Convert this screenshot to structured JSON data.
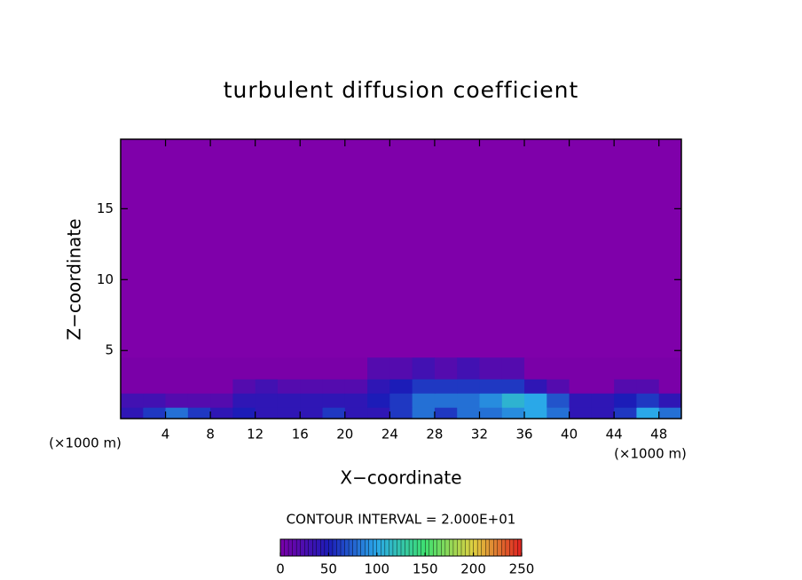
{
  "chart_data": {
    "type": "contour",
    "title": "turbulent diffusion coefficient",
    "x_label": "X−coordinate",
    "y_label": "Z−coordinate",
    "x_unit_label": "(×1000 m)",
    "x_unit_label_right": "(×1000 m)",
    "contour_label": "CONTOUR INTERVAL = 2.000E+01",
    "xlim": [
      0,
      50
    ],
    "xticks": [
      4,
      8,
      12,
      16,
      20,
      24,
      28,
      32,
      36,
      40,
      44,
      48
    ],
    "ylim": [
      0.2,
      19.9
    ],
    "yticks": [
      5,
      10,
      15
    ],
    "x_edges": [
      0,
      2,
      4,
      6,
      8,
      10,
      12,
      14,
      16,
      18,
      20,
      22,
      24,
      26,
      28,
      30,
      32,
      34,
      36,
      38,
      40,
      42,
      44,
      46,
      48,
      50
    ],
    "z_edges": [
      0.2,
      1,
      2,
      3,
      4.5
    ],
    "values": [
      [
        40,
        60,
        80,
        60,
        40,
        50,
        40,
        40,
        40,
        60,
        40,
        40,
        60,
        80,
        60,
        80,
        80,
        90,
        100,
        80,
        40,
        40,
        60,
        100,
        80
      ],
      [
        30,
        30,
        20,
        20,
        20,
        40,
        40,
        40,
        40,
        40,
        40,
        50,
        60,
        80,
        80,
        80,
        90,
        110,
        100,
        70,
        40,
        40,
        50,
        60,
        40
      ],
      [
        0,
        0,
        0,
        0,
        0,
        20,
        30,
        20,
        20,
        20,
        20,
        40,
        50,
        60,
        60,
        60,
        60,
        60,
        40,
        20,
        0,
        0,
        20,
        20,
        0
      ],
      [
        0,
        0,
        0,
        0,
        0,
        0,
        0,
        0,
        0,
        0,
        0,
        20,
        20,
        30,
        20,
        30,
        20,
        20,
        0,
        0,
        0,
        0,
        0,
        0,
        0
      ]
    ],
    "colormap": [
      "#7a00a8",
      "#1c1cb8",
      "#2aa8e8",
      "#3ee070",
      "#e0d040",
      "#e02020"
    ],
    "cbar_lim": [
      0,
      250
    ],
    "cbar_ticks": [
      0,
      50,
      100,
      150,
      200,
      250
    ]
  }
}
